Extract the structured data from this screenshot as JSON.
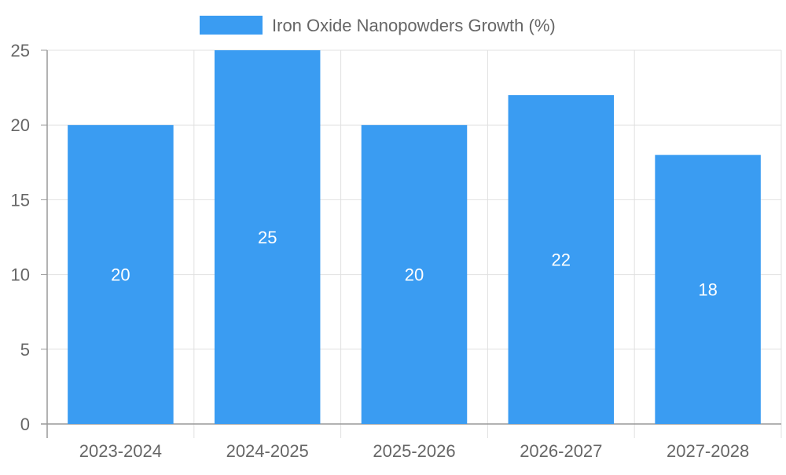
{
  "chart_data": {
    "type": "bar",
    "categories": [
      "2023-2024",
      "2024-2025",
      "2025-2026",
      "2026-2027",
      "2027-2028"
    ],
    "series": [
      {
        "name": "Iron Oxide Nanopowders Growth (%)",
        "values": [
          20,
          25,
          20,
          22,
          18
        ],
        "color": "#3a9cf2"
      }
    ],
    "ylim": [
      0,
      25
    ],
    "yticks": [
      0,
      5,
      10,
      15,
      20,
      25
    ],
    "grid": true,
    "legend_position": "top-center",
    "data_labels": "inside-center",
    "data_label_color": "#ffffff",
    "axis_text_color": "#666666",
    "grid_color": "#e0e0e0",
    "axis_line_color": "#999999"
  }
}
